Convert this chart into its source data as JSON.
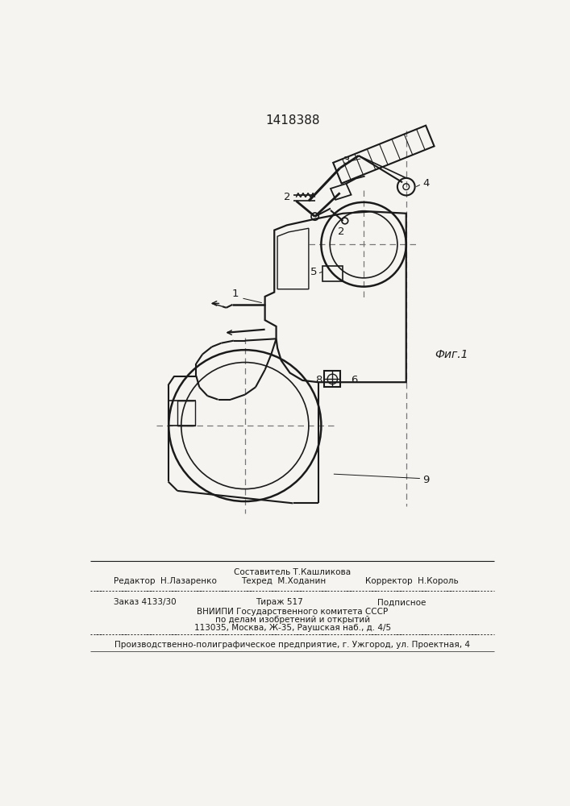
{
  "patent_number": "1418388",
  "fig_label": "Фиг.1",
  "bg_color": "#f5f4f0",
  "line_color": "#1a1a1a",
  "footer": {
    "sestavitel": "Составитель Т.Кашликова",
    "redaktor": "Редактор  Н.Лазаренко",
    "tehred": "Техред  М.Ходанин",
    "korrektor": "Корректор  Н.Король",
    "zakaz": "Заказ 4133/30",
    "tirazh": "Тираж 517",
    "podpisnoe": "Подписное",
    "vniipie": "ВНИИПИ Государственного комитета СССР",
    "po_delam": "по делам изобретений и открытий",
    "address": "113035, Москва, Ж-35, Раушская наб., д. 4/5",
    "printer": "Производственно-полиграфическое предприятие, г. Ужгород, ул. Проектная, 4"
  }
}
